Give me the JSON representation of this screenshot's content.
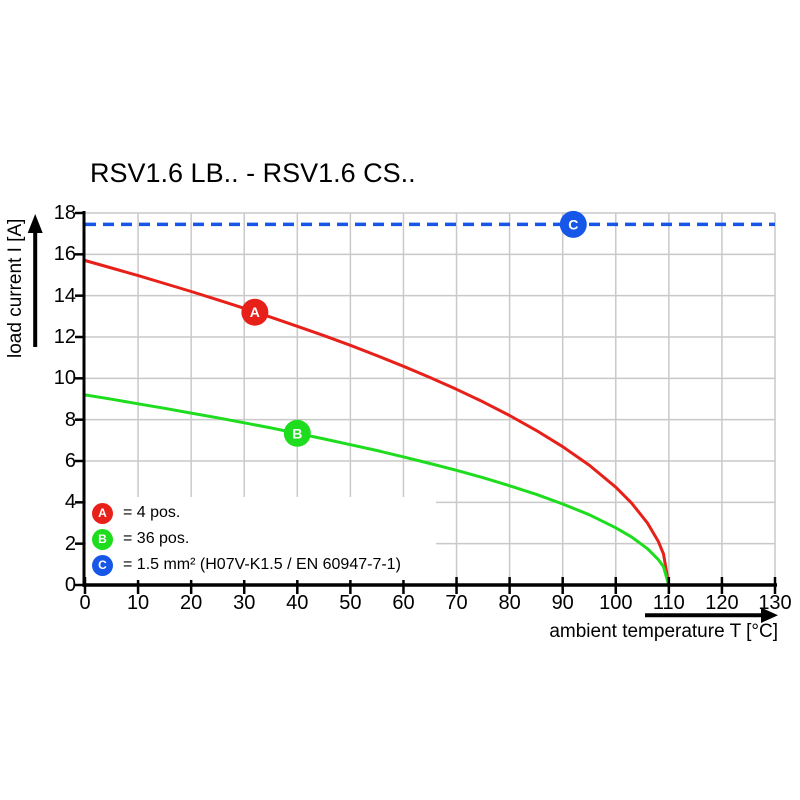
{
  "title": "RSV1.6 LB.. - RSV1.6 CS..",
  "x_axis": {
    "label": "ambient temperature T [°C]",
    "min": 0,
    "max": 130,
    "ticks": [
      0,
      10,
      20,
      30,
      40,
      50,
      60,
      70,
      80,
      90,
      100,
      110,
      120,
      130
    ]
  },
  "y_axis": {
    "label": "load current I [A]",
    "min": 0,
    "max": 18,
    "ticks": [
      0,
      2,
      4,
      6,
      8,
      10,
      12,
      14,
      16,
      18
    ]
  },
  "colors": {
    "red": "#e8201a",
    "green": "#1edc1e",
    "blue": "#1757e8",
    "grid": "#c9c9c9",
    "axis": "#000000"
  },
  "chart_data": {
    "type": "line",
    "title": "RSV1.6 LB.. - RSV1.6 CS..",
    "xlabel": "ambient temperature T [°C]",
    "ylabel": "load current I [A]",
    "xlim": [
      0,
      130
    ],
    "ylim": [
      0,
      18
    ],
    "grid": true,
    "legend_position": "lower-left",
    "series": [
      {
        "name": "A",
        "label": "= 4 pos.",
        "color_key": "red",
        "style": "solid",
        "x": [
          0,
          5,
          10,
          15,
          20,
          25,
          30,
          35,
          40,
          45,
          50,
          55,
          60,
          65,
          70,
          75,
          80,
          85,
          90,
          95,
          100,
          103,
          106,
          108,
          109,
          110
        ],
        "y": [
          15.7,
          15.34,
          14.97,
          14.59,
          14.2,
          13.8,
          13.39,
          12.96,
          12.52,
          12.07,
          11.6,
          11.1,
          10.58,
          10.04,
          9.47,
          8.86,
          8.2,
          7.48,
          6.69,
          5.8,
          4.73,
          3.96,
          2.99,
          2.12,
          1.5,
          0
        ]
      },
      {
        "name": "B",
        "label": "= 36 pos.",
        "color_key": "green",
        "style": "solid",
        "x": [
          0,
          5,
          10,
          15,
          20,
          25,
          30,
          35,
          40,
          45,
          50,
          55,
          60,
          65,
          70,
          75,
          80,
          85,
          90,
          95,
          100,
          103,
          106,
          108,
          109,
          110
        ],
        "y": [
          9.2,
          8.99,
          8.77,
          8.55,
          8.32,
          8.09,
          7.85,
          7.6,
          7.34,
          7.07,
          6.79,
          6.51,
          6.2,
          5.88,
          5.55,
          5.19,
          4.8,
          4.39,
          3.92,
          3.4,
          2.77,
          2.32,
          1.75,
          1.24,
          0.88,
          0
        ]
      },
      {
        "name": "C",
        "label": "= 1.5 mm² (H07V-K1.5 / EN 60947-7-1)",
        "color_key": "blue",
        "style": "dashed",
        "x": [
          0,
          130
        ],
        "y": [
          17.45,
          17.45
        ]
      }
    ],
    "markers": [
      {
        "letter": "A",
        "x": 32,
        "y": 13.2,
        "color_key": "red"
      },
      {
        "letter": "B",
        "x": 40,
        "y": 7.34,
        "color_key": "green"
      },
      {
        "letter": "C",
        "x": 92,
        "y": 17.45,
        "color_key": "blue"
      }
    ],
    "legend": [
      {
        "letter": "A",
        "text": "= 4 pos.",
        "color_key": "red"
      },
      {
        "letter": "B",
        "text": "= 36 pos.",
        "color_key": "green"
      },
      {
        "letter": "C",
        "text": "= 1.5 mm² (H07V-K1.5 / EN 60947-7-1)",
        "color_key": "blue"
      }
    ]
  }
}
